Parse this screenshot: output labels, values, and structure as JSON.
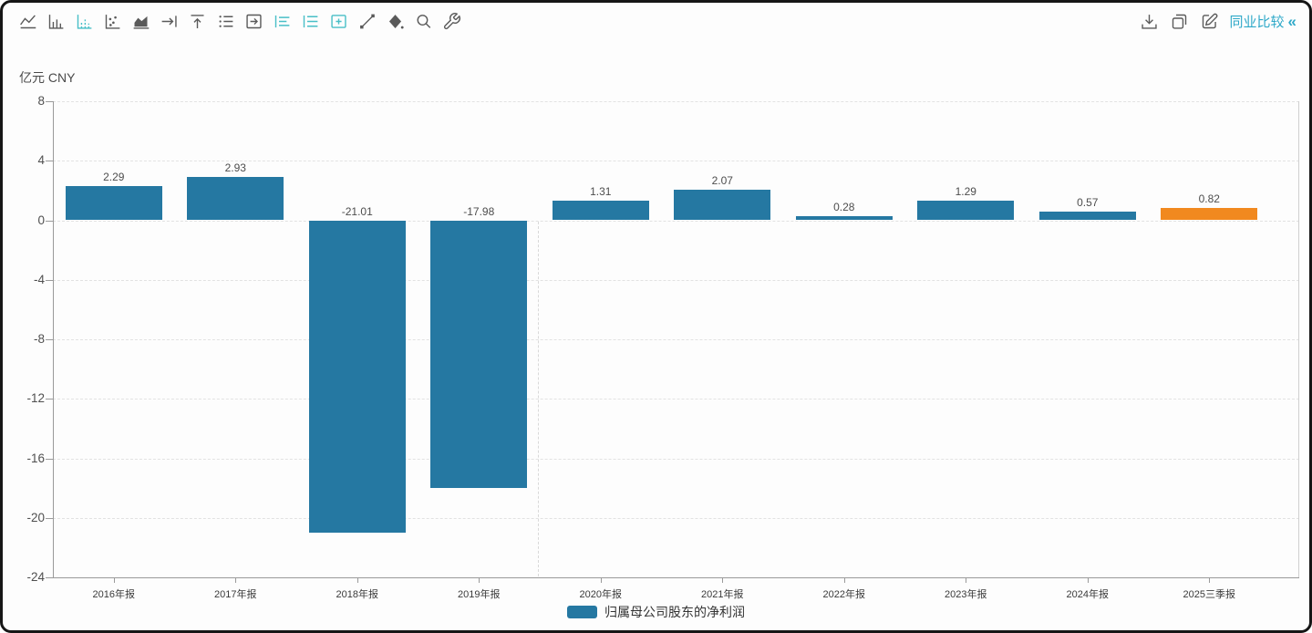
{
  "toolbar": {
    "left_icons": [
      {
        "name": "line-chart-icon",
        "active": false
      },
      {
        "name": "bar-chart-icon",
        "active": false
      },
      {
        "name": "bar-chart-dashed-icon",
        "active": true
      },
      {
        "name": "scatter-chart-icon",
        "active": false
      },
      {
        "name": "area-chart-icon",
        "active": false
      },
      {
        "name": "arrow-right-to-line-icon",
        "active": false
      },
      {
        "name": "arrow-up-to-line-icon",
        "active": false
      },
      {
        "name": "list-settings-icon",
        "active": false
      },
      {
        "name": "arrow-right-box-icon",
        "active": false
      },
      {
        "name": "align-left-list-icon",
        "active": true
      },
      {
        "name": "align-left-list-alt-icon",
        "active": true
      },
      {
        "name": "plus-box-icon",
        "active": true
      },
      {
        "name": "draw-line-icon",
        "active": false
      },
      {
        "name": "fill-color-icon",
        "active": false
      },
      {
        "name": "zoom-search-icon",
        "active": false
      },
      {
        "name": "wrench-icon",
        "active": false
      }
    ],
    "right_icons": [
      {
        "name": "download-icon"
      },
      {
        "name": "copy-icon"
      },
      {
        "name": "edit-icon"
      }
    ],
    "compare_label": "同业比较",
    "collapse_glyph": "«"
  },
  "chart_data": {
    "type": "bar",
    "title": "",
    "unit_label": "亿元 CNY",
    "categories": [
      "2016年报",
      "2017年报",
      "2018年报",
      "2019年报",
      "2020年报",
      "2021年报",
      "2022年报",
      "2023年报",
      "2024年报",
      "2025三季报"
    ],
    "series": [
      {
        "name": "归属母公司股东的净利润",
        "values": [
          2.29,
          2.93,
          -21.01,
          -17.98,
          1.31,
          2.07,
          0.28,
          1.29,
          0.57,
          0.82
        ]
      }
    ],
    "highlight_index": 9,
    "ylim": [
      -24,
      8
    ],
    "yticks": [
      8,
      4,
      0,
      -4,
      -8,
      -12,
      -16,
      -20,
      -24
    ],
    "grid": "horizontal-dashed",
    "legend": {
      "label": "归属母公司股东的净利润",
      "position": "bottom-center"
    },
    "colors": {
      "bar": "#2578a2",
      "highlight": "#f1891f",
      "grid": "#e2e2e2",
      "axis": "#9a9a9a",
      "value_label": "#4d4d4d",
      "tick_text": "#4f4f4f",
      "accent": "#2fa9c9",
      "icon_active": "#48bfc7",
      "icon": "#5a5a5a"
    }
  }
}
